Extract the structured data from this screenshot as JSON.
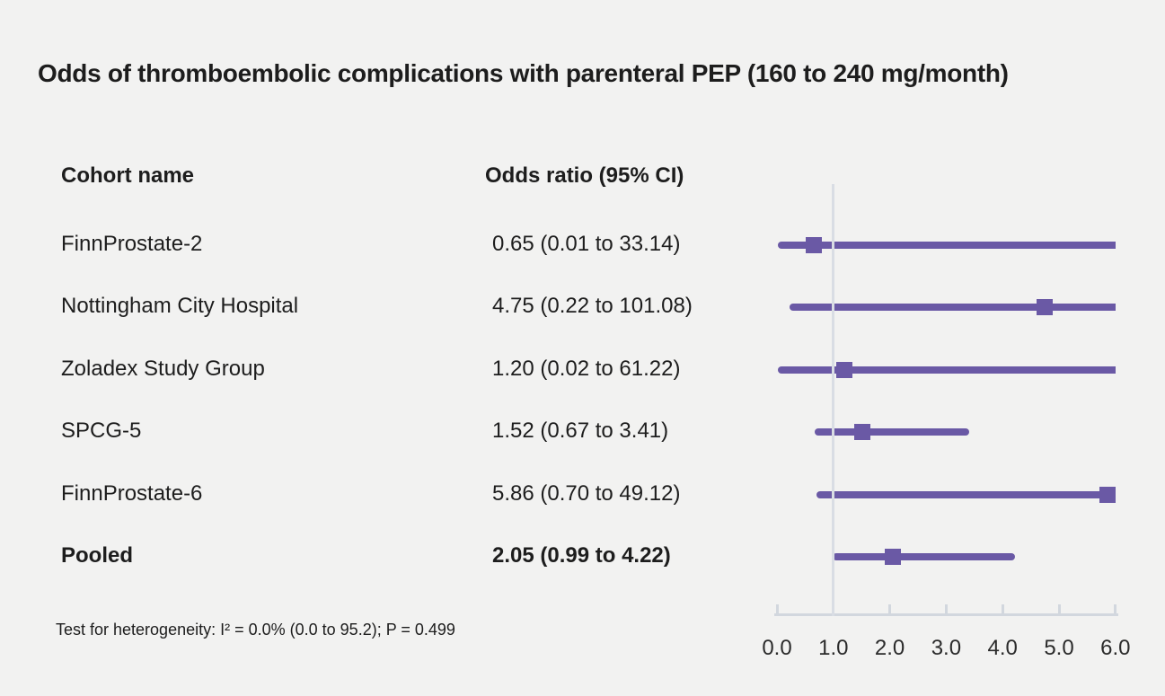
{
  "title": "Odds of thromboembolic complications with parenteral PEP (160 to 240 mg/month)",
  "columns": {
    "cohort": "Cohort name",
    "odds_ratio": "Odds ratio (95% CI)"
  },
  "footnote": "Test for heterogeneity: I² = 0.0% (0.0 to 95.2); P = 0.499",
  "colors": {
    "background": "#f2f2f1",
    "text": "#1d1d1d",
    "marker_purple": "#6a59a5",
    "reference_line": "#d9dde4",
    "axis": "#d2d7de"
  },
  "chart_data": {
    "type": "forest",
    "title": "Odds of thromboembolic complications with parenteral PEP (160 to 240 mg/month)",
    "xlabel": "",
    "ylabel": "",
    "xlim": [
      0.0,
      6.0
    ],
    "x_ticks": [
      0.0,
      1.0,
      2.0,
      3.0,
      4.0,
      5.0,
      6.0
    ],
    "x_tick_labels": [
      "0.0",
      "1.0",
      "2.0",
      "3.0",
      "4.0",
      "5.0",
      "6.0"
    ],
    "reference_line_x": 1.0,
    "grid": false,
    "rows": [
      {
        "name": "FinnProstate-2",
        "or": 0.65,
        "lcl": 0.01,
        "ucl": 33.14,
        "label": "0.65 (0.01 to 33.14)",
        "bold": false
      },
      {
        "name": "Nottingham City Hospital",
        "or": 4.75,
        "lcl": 0.22,
        "ucl": 101.08,
        "label": "4.75 (0.22 to 101.08)",
        "bold": false
      },
      {
        "name": "Zoladex Study Group",
        "or": 1.2,
        "lcl": 0.02,
        "ucl": 61.22,
        "label": "1.20 (0.02 to 61.22)",
        "bold": false
      },
      {
        "name": "SPCG-5",
        "or": 1.52,
        "lcl": 0.67,
        "ucl": 3.41,
        "label": "1.52 (0.67 to 3.41)",
        "bold": false
      },
      {
        "name": "FinnProstate-6",
        "or": 5.86,
        "lcl": 0.7,
        "ucl": 49.12,
        "label": "5.86 (0.70 to 49.12)",
        "bold": false
      },
      {
        "name": "Pooled",
        "or": 2.05,
        "lcl": 0.99,
        "ucl": 4.22,
        "label": "2.05 (0.99 to 4.22)",
        "bold": true
      }
    ]
  }
}
